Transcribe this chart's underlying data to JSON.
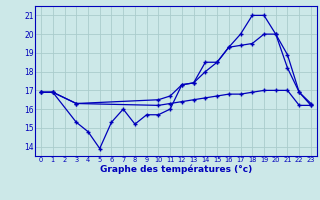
{
  "title": "Graphe des températures (°c)",
  "bg_color": "#cce8e8",
  "grid_color": "#aacccc",
  "line_color": "#0000bb",
  "xlim": [
    -0.5,
    23.5
  ],
  "ylim": [
    13.5,
    21.5
  ],
  "xticks": [
    0,
    1,
    2,
    3,
    4,
    5,
    6,
    7,
    8,
    9,
    10,
    11,
    12,
    13,
    14,
    15,
    16,
    17,
    18,
    19,
    20,
    21,
    22,
    23
  ],
  "yticks": [
    14,
    15,
    16,
    17,
    18,
    19,
    20,
    21
  ],
  "series1_x": [
    0,
    1,
    3,
    10,
    11,
    12,
    13,
    14,
    15,
    16,
    17,
    18,
    19,
    20,
    21,
    22,
    23
  ],
  "series1_y": [
    16.9,
    16.9,
    16.3,
    16.2,
    16.3,
    16.4,
    16.5,
    16.6,
    16.7,
    16.8,
    16.8,
    16.9,
    17.0,
    17.0,
    17.0,
    16.2,
    16.2
  ],
  "series2_x": [
    0,
    1,
    3,
    4,
    5,
    6,
    7,
    8,
    9,
    10,
    11,
    12,
    13,
    14,
    15,
    16,
    17,
    18,
    19,
    20,
    21,
    22,
    23
  ],
  "series2_y": [
    16.9,
    16.9,
    15.3,
    14.8,
    13.9,
    15.3,
    16.0,
    15.2,
    15.7,
    15.7,
    16.0,
    17.3,
    17.4,
    18.5,
    18.5,
    19.3,
    20.0,
    21.0,
    21.0,
    20.0,
    18.2,
    16.9,
    16.3
  ],
  "series3_x": [
    0,
    1,
    3,
    10,
    11,
    12,
    13,
    14,
    15,
    16,
    17,
    18,
    19,
    20,
    21,
    22,
    23
  ],
  "series3_y": [
    16.9,
    16.9,
    16.3,
    16.5,
    16.7,
    17.3,
    17.4,
    18.0,
    18.5,
    19.3,
    19.4,
    19.5,
    20.0,
    20.0,
    18.9,
    16.9,
    16.2
  ]
}
